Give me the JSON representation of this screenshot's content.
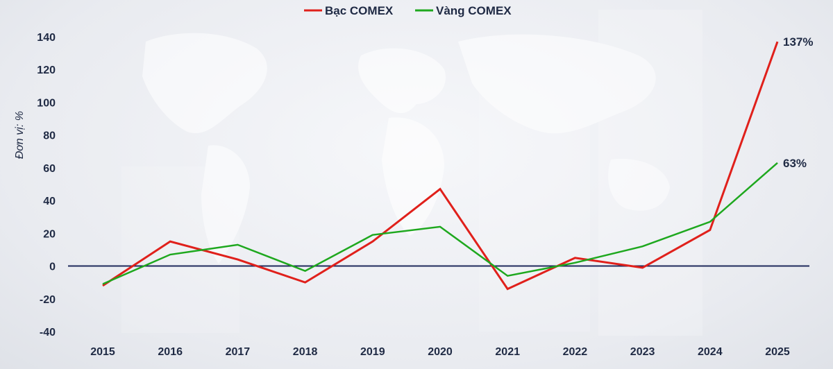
{
  "chart_data": {
    "type": "line",
    "x": [
      "2015",
      "2016",
      "2017",
      "2018",
      "2019",
      "2020",
      "2021",
      "2022",
      "2023",
      "2024",
      "2025"
    ],
    "series": [
      {
        "name": "Bạc COMEX",
        "color": "#e0201b",
        "values": [
          -12,
          15,
          4,
          -10,
          15,
          47,
          -14,
          5,
          -1,
          22,
          137
        ],
        "end_label": "137%"
      },
      {
        "name": "Vàng COMEX",
        "color": "#1ea81e",
        "values": [
          -11,
          7,
          13,
          -3,
          19,
          24,
          -6,
          2,
          12,
          27,
          63
        ],
        "end_label": "63%"
      }
    ],
    "yticks": [
      -40,
      -20,
      0,
      20,
      40,
      60,
      80,
      100,
      120,
      140
    ],
    "ylim": [
      -40,
      140
    ],
    "ylabel": "Đơn vị: %",
    "zero_line_color": "#1f2a5c",
    "legend_position": "top-center",
    "grid": false
  }
}
